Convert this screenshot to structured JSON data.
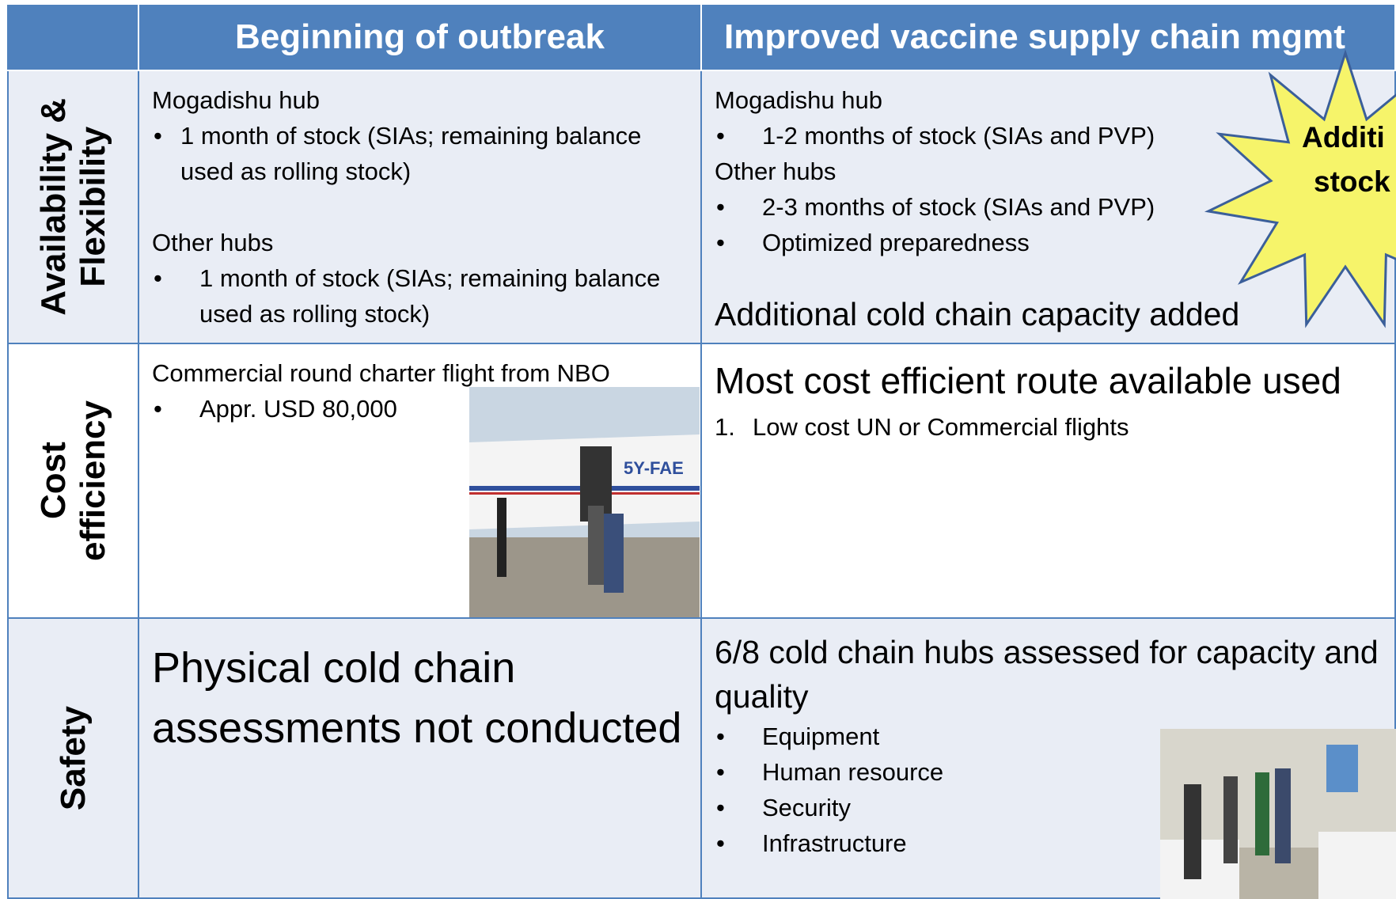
{
  "header": {
    "columns": [
      "Beginning of outbreak",
      "Improved vaccine supply chain mgmt"
    ]
  },
  "rows": [
    {
      "label": [
        "Availability &",
        "Flexibility"
      ],
      "cells": [
        [
          {
            "kind": "p",
            "text": "Mogadishu hub"
          },
          {
            "kind": "bullet",
            "text": "1 month of stock (SIAs; remaining balance used as rolling stock)"
          },
          {
            "kind": "p-spaced",
            "text": "Other hubs"
          },
          {
            "kind": "bullet-wide",
            "text": "1 month of stock (SIAs; remaining balance used as rolling stock)"
          }
        ],
        [
          {
            "kind": "p",
            "text": "Mogadishu hub"
          },
          {
            "kind": "bullet-wide",
            "text": "1-2 months of stock (SIAs and PVP)"
          },
          {
            "kind": "p",
            "text": "Other hubs"
          },
          {
            "kind": "bullet-wide",
            "text": "2-3 months of stock (SIAs and PVP)"
          },
          {
            "kind": "bullet-wide",
            "text": "Optimized preparedness"
          },
          {
            "kind": "medium-spaced",
            "text": "Additional cold chain capacity added"
          }
        ]
      ]
    },
    {
      "label": [
        "Cost",
        "efficiency"
      ],
      "cells": [
        [
          {
            "kind": "p",
            "text": "Commercial round charter flight from NBO"
          },
          {
            "kind": "bullet-wide",
            "text": "Appr. USD 80,000"
          }
        ],
        [
          {
            "kind": "large",
            "text": "Most cost efficient route available used"
          },
          {
            "kind": "numbered",
            "marker": "1.",
            "text": "Low cost UN or Commercial flights"
          }
        ]
      ]
    },
    {
      "label": [
        "Safety"
      ],
      "cells": [
        [
          {
            "kind": "huge",
            "text": "Physical cold chain assessments not conducted"
          }
        ],
        [
          {
            "kind": "medium",
            "text": "6/8 cold chain hubs assessed for capacity and quality"
          },
          {
            "kind": "bullet-wide",
            "text": "Equipment"
          },
          {
            "kind": "bullet-wide",
            "text": "Human resource"
          },
          {
            "kind": "bullet-wide",
            "text": "Security"
          },
          {
            "kind": "bullet-wide",
            "text": "Infrastructure"
          }
        ]
      ]
    }
  ],
  "callout": {
    "lines": [
      "Additi",
      "stock"
    ]
  }
}
